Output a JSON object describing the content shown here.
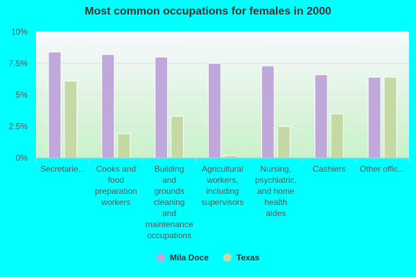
{
  "chart_data": {
    "type": "bar",
    "title": "Most common occupations for females in 2000",
    "xlabel": "",
    "ylabel": "",
    "ylim": [
      0,
      10
    ],
    "yticks": [
      "0%",
      "2.5%",
      "5%",
      "7.5%",
      "10%"
    ],
    "ytick_values": [
      0,
      2.5,
      5,
      7.5,
      10
    ],
    "categories": [
      "Secretaries...",
      "Cooks and food preparation workers",
      "Building and grounds cleaning and maintenance occupations",
      "Agricultural workers, including supervisors",
      "Nursing, psychiatric, and home health aides",
      "Cashiers",
      "Other offic..."
    ],
    "category_lines": [
      [
        "Secretarie..."
      ],
      [
        "Cooks and",
        "food",
        "preparation",
        "workers"
      ],
      [
        "Building",
        "and",
        "grounds",
        "cleaning",
        "and",
        "maintenance",
        "occupations"
      ],
      [
        "Agricultural",
        "workers,",
        "including",
        "supervisors"
      ],
      [
        "Nursing,",
        "psychiatric,",
        "and home",
        "health",
        "aides"
      ],
      [
        "Cashiers"
      ],
      [
        "Other offic..."
      ]
    ],
    "series": [
      {
        "name": "Mila Doce",
        "color": "#c0a8db",
        "values": [
          8.4,
          8.2,
          8.0,
          7.5,
          7.3,
          6.6,
          6.4
        ]
      },
      {
        "name": "Texas",
        "color": "#c5d9a4",
        "values": [
          6.1,
          1.9,
          3.3,
          0.2,
          2.5,
          3.5,
          6.4
        ]
      }
    ],
    "grid": true,
    "legend": "bottom-center",
    "colors": {
      "background": "#00ffff",
      "plot_top": "#f8f8fd",
      "plot_bottom": "#c9f2c9"
    }
  }
}
